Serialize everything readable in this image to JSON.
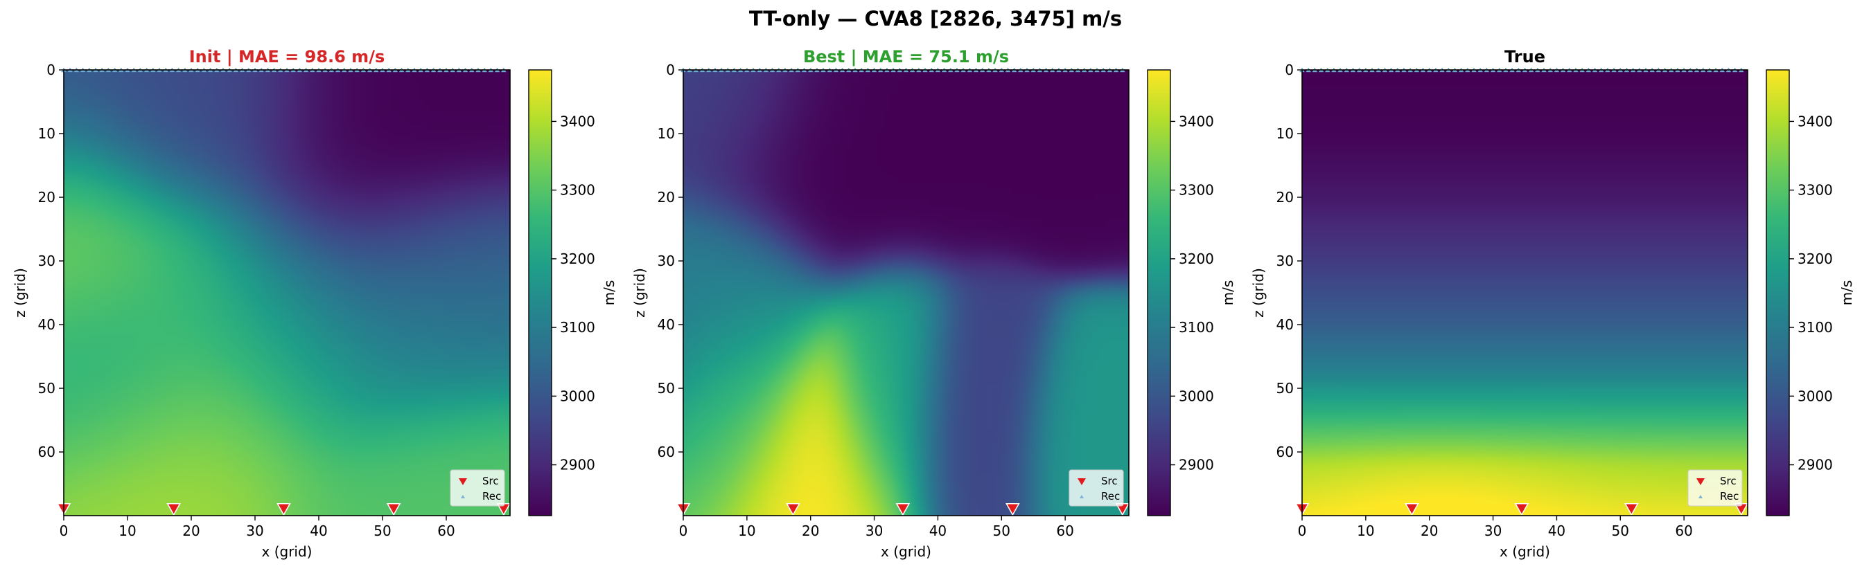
{
  "figure": {
    "title": "TT-only — CVA8 [2826, 3475] m/s"
  },
  "chart_data": [
    {
      "type": "heatmap",
      "title": "Init  |  MAE = 98.6 m/s",
      "title_color": "#d62728",
      "xlabel": "x (grid)",
      "ylabel": "z (grid)",
      "xlim": [
        0,
        70
      ],
      "ylim": [
        70,
        0
      ],
      "xticks": [
        0,
        10,
        20,
        30,
        40,
        50,
        60
      ],
      "yticks": [
        0,
        10,
        20,
        30,
        40,
        50,
        60
      ],
      "colorbar": {
        "label": "m/s",
        "ticks": [
          2900,
          3000,
          3100,
          3200,
          3300,
          3400
        ],
        "vmin": 2826,
        "vmax": 3475,
        "colormap": "viridis"
      },
      "field_blobs": [
        {
          "x": 10,
          "z": 5,
          "value": 3000,
          "sx": 16,
          "sz": 10
        },
        {
          "x": 20,
          "z": 5,
          "value": 2960,
          "sx": 10,
          "sz": 8
        },
        {
          "x": 48,
          "z": 18,
          "value": 2826,
          "sx": 14,
          "sz": 15
        },
        {
          "x": 55,
          "z": 5,
          "value": 2826,
          "sx": 12,
          "sz": 8
        },
        {
          "x": 2,
          "z": 25,
          "value": 3340,
          "sx": 8,
          "sz": 10
        },
        {
          "x": 15,
          "z": 35,
          "value": 3300,
          "sx": 14,
          "sz": 12
        },
        {
          "x": 10,
          "z": 45,
          "value": 3200,
          "sx": 10,
          "sz": 8
        },
        {
          "x": 22,
          "z": 54,
          "value": 3390,
          "sx": 12,
          "sz": 10
        },
        {
          "x": 55,
          "z": 40,
          "value": 3170,
          "sx": 12,
          "sz": 10
        },
        {
          "x": 60,
          "z": 65,
          "value": 3300,
          "sx": 12,
          "sz": 8
        },
        {
          "x": 35,
          "z": 42,
          "value": 3170,
          "sx": 10,
          "sz": 10
        },
        {
          "x": 62,
          "z": 32,
          "value": 3030,
          "sx": 10,
          "sz": 8
        }
      ],
      "field_base": 3150,
      "sources": {
        "label": "Src",
        "x": [
          0,
          17.25,
          34.5,
          51.75,
          69
        ],
        "z": 69,
        "color": "#e31a1c"
      },
      "receivers": {
        "label": "Rec",
        "z": 0,
        "x_start": 0,
        "x_end": 69,
        "count": 70,
        "color": "#7fb3d5"
      },
      "legend_position": "lower right"
    },
    {
      "type": "heatmap",
      "title": "Best  |  MAE = 75.1 m/s",
      "title_color": "#2ca02c",
      "xlabel": "x (grid)",
      "ylabel": "z (grid)",
      "xlim": [
        0,
        70
      ],
      "ylim": [
        70,
        0
      ],
      "xticks": [
        0,
        10,
        20,
        30,
        40,
        50,
        60
      ],
      "yticks": [
        0,
        10,
        20,
        30,
        40,
        50,
        60
      ],
      "colorbar": {
        "label": "m/s",
        "ticks": [
          2900,
          3000,
          3100,
          3200,
          3300,
          3400
        ],
        "vmin": 2826,
        "vmax": 3475,
        "colormap": "viridis"
      },
      "field_blobs": [
        {
          "x": 22,
          "z": 12,
          "value": 2826,
          "sx": 11,
          "sz": 9
        },
        {
          "x": 60,
          "z": 5,
          "value": 2826,
          "sx": 10,
          "sz": 8
        },
        {
          "x": 5,
          "z": 5,
          "value": 2960,
          "sx": 8,
          "sz": 8
        },
        {
          "x": 21,
          "z": 62,
          "value": 3475,
          "sx": 7,
          "sz": 10
        },
        {
          "x": 21,
          "z": 70,
          "value": 3475,
          "sx": 8,
          "sz": 8
        },
        {
          "x": 8,
          "z": 55,
          "value": 3280,
          "sx": 6,
          "sz": 10
        },
        {
          "x": 32,
          "z": 55,
          "value": 3200,
          "sx": 5,
          "sz": 10
        },
        {
          "x": 65,
          "z": 62,
          "value": 3170,
          "sx": 6,
          "sz": 8
        },
        {
          "x": 4,
          "z": 38,
          "value": 3100,
          "sx": 8,
          "sz": 10
        },
        {
          "x": 45,
          "z": 60,
          "value": 2960,
          "sx": 6,
          "sz": 10
        }
      ],
      "field_base": 2990,
      "sources": {
        "label": "Src",
        "x": [
          0,
          17.25,
          34.5,
          51.75,
          69
        ],
        "z": 69,
        "color": "#e31a1c"
      },
      "receivers": {
        "label": "Rec",
        "z": 0,
        "x_start": 0,
        "x_end": 69,
        "count": 70,
        "color": "#7fb3d5"
      },
      "legend_position": "lower right"
    },
    {
      "type": "heatmap",
      "title": "True",
      "title_color": "#000000",
      "xlabel": "x (grid)",
      "ylabel": "z (grid)",
      "xlim": [
        0,
        70
      ],
      "ylim": [
        70,
        0
      ],
      "xticks": [
        0,
        10,
        20,
        30,
        40,
        50,
        60
      ],
      "yticks": [
        0,
        10,
        20,
        30,
        40,
        50,
        60
      ],
      "colorbar": {
        "label": "m/s",
        "ticks": [
          2900,
          3000,
          3100,
          3200,
          3300,
          3400
        ],
        "vmin": 2826,
        "vmax": 3475,
        "colormap": "viridis"
      },
      "field_profile": {
        "z": [
          0,
          10,
          20,
          30,
          40,
          48,
          55,
          62,
          70
        ],
        "value": [
          2826,
          2830,
          2870,
          2940,
          3020,
          3120,
          3260,
          3390,
          3460
        ]
      },
      "field_bulge": {
        "x": 22,
        "z": 66,
        "value": 40,
        "sx": 15,
        "sz": 6
      },
      "sources": {
        "label": "Src",
        "x": [
          0,
          17.25,
          34.5,
          51.75,
          69
        ],
        "z": 69,
        "color": "#e31a1c"
      },
      "receivers": {
        "label": "Rec",
        "z": 0,
        "x_start": 0,
        "x_end": 69,
        "count": 70,
        "color": "#7fb3d5"
      },
      "legend_position": "lower right"
    }
  ]
}
